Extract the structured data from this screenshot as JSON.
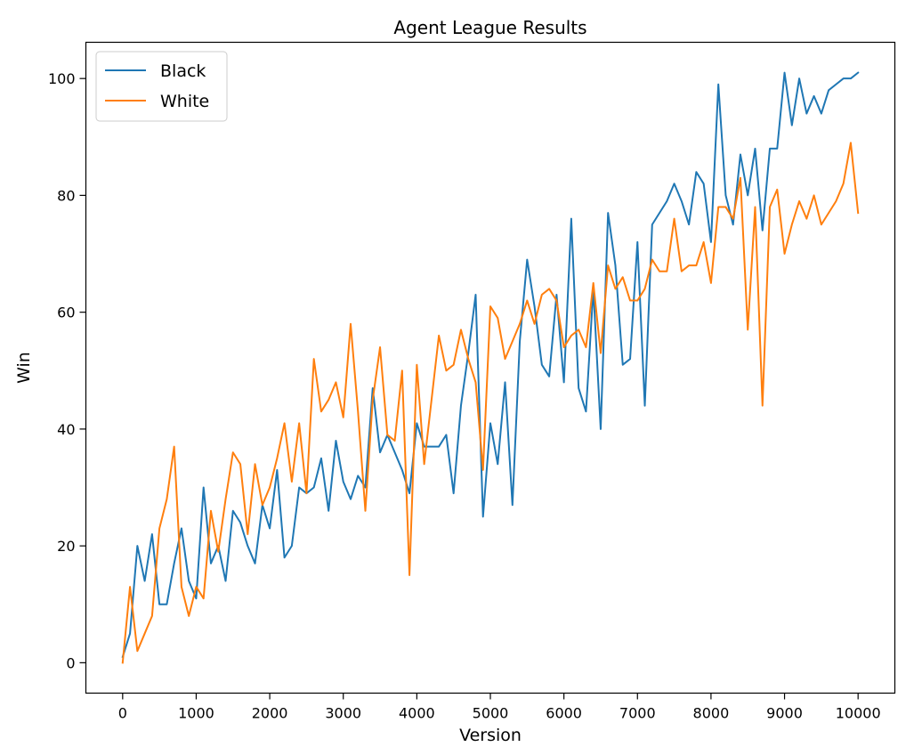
{
  "chart_data": {
    "type": "line",
    "title": "Agent League Results",
    "xlabel": "Version",
    "ylabel": "Win",
    "xlim": [
      -500,
      10500
    ],
    "ylim": [
      -5.2,
      106.2
    ],
    "xticks": [
      0,
      1000,
      2000,
      3000,
      4000,
      5000,
      6000,
      7000,
      8000,
      9000,
      10000
    ],
    "yticks": [
      0,
      20,
      40,
      60,
      80,
      100
    ],
    "grid": false,
    "legend_position": "top-left",
    "x": [
      0,
      100,
      200,
      300,
      400,
      500,
      600,
      700,
      800,
      900,
      1000,
      1100,
      1200,
      1300,
      1400,
      1500,
      1600,
      1700,
      1800,
      1900,
      2000,
      2100,
      2200,
      2300,
      2400,
      2500,
      2600,
      2700,
      2800,
      2900,
      3000,
      3100,
      3200,
      3300,
      3400,
      3500,
      3600,
      3700,
      3800,
      3900,
      4000,
      4100,
      4200,
      4300,
      4400,
      4500,
      4600,
      4700,
      4800,
      4900,
      5000,
      5100,
      5200,
      5300,
      5400,
      5500,
      5600,
      5700,
      5800,
      5900,
      6000,
      6100,
      6200,
      6300,
      6400,
      6500,
      6600,
      6700,
      6800,
      6900,
      7000,
      7100,
      7200,
      7300,
      7400,
      7500,
      7600,
      7700,
      7800,
      7900,
      8000,
      8100,
      8200,
      8300,
      8400,
      8500,
      8600,
      8700,
      8800,
      8900,
      9000,
      9100,
      9200,
      9300,
      9400,
      9500,
      9600,
      9700,
      9800,
      9900,
      10000
    ],
    "series": [
      {
        "name": "Black",
        "color": "#1f77b4",
        "values": [
          1,
          5,
          20,
          14,
          22,
          10,
          10,
          17,
          23,
          14,
          11,
          30,
          17,
          20,
          14,
          26,
          24,
          20,
          17,
          27,
          23,
          33,
          18,
          20,
          30,
          29,
          30,
          35,
          26,
          38,
          31,
          28,
          32,
          30,
          47,
          36,
          39,
          36,
          33,
          29,
          41,
          37,
          37,
          37,
          39,
          29,
          44,
          53,
          63,
          25,
          41,
          34,
          48,
          27,
          55,
          69,
          61,
          51,
          49,
          63,
          48,
          76,
          47,
          43,
          64,
          40,
          77,
          68,
          51,
          52,
          72,
          44,
          75,
          77,
          79,
          82,
          79,
          75,
          84,
          82,
          72,
          99,
          80,
          75,
          87,
          80,
          88,
          74,
          88,
          88,
          101,
          92,
          100,
          94,
          97,
          94,
          98,
          99,
          100,
          100,
          101
        ]
      },
      {
        "name": "White",
        "color": "#ff7f0e",
        "values": [
          0,
          13,
          2,
          5,
          8,
          23,
          28,
          37,
          13,
          8,
          13,
          11,
          26,
          19,
          28,
          36,
          34,
          22,
          34,
          27,
          30,
          35,
          41,
          31,
          41,
          29,
          52,
          43,
          45,
          48,
          42,
          58,
          43,
          26,
          45,
          54,
          39,
          38,
          50,
          15,
          51,
          34,
          45,
          56,
          50,
          51,
          57,
          52,
          48,
          33,
          61,
          59,
          52,
          55,
          58,
          62,
          58,
          63,
          64,
          62,
          54,
          56,
          57,
          54,
          65,
          53,
          68,
          64,
          66,
          62,
          62,
          64,
          69,
          67,
          67,
          76,
          67,
          68,
          68,
          72,
          65,
          78,
          78,
          76,
          83,
          57,
          78,
          44,
          78,
          81,
          70,
          75,
          79,
          76,
          80,
          75,
          77,
          79,
          82,
          89,
          77
        ]
      }
    ]
  }
}
